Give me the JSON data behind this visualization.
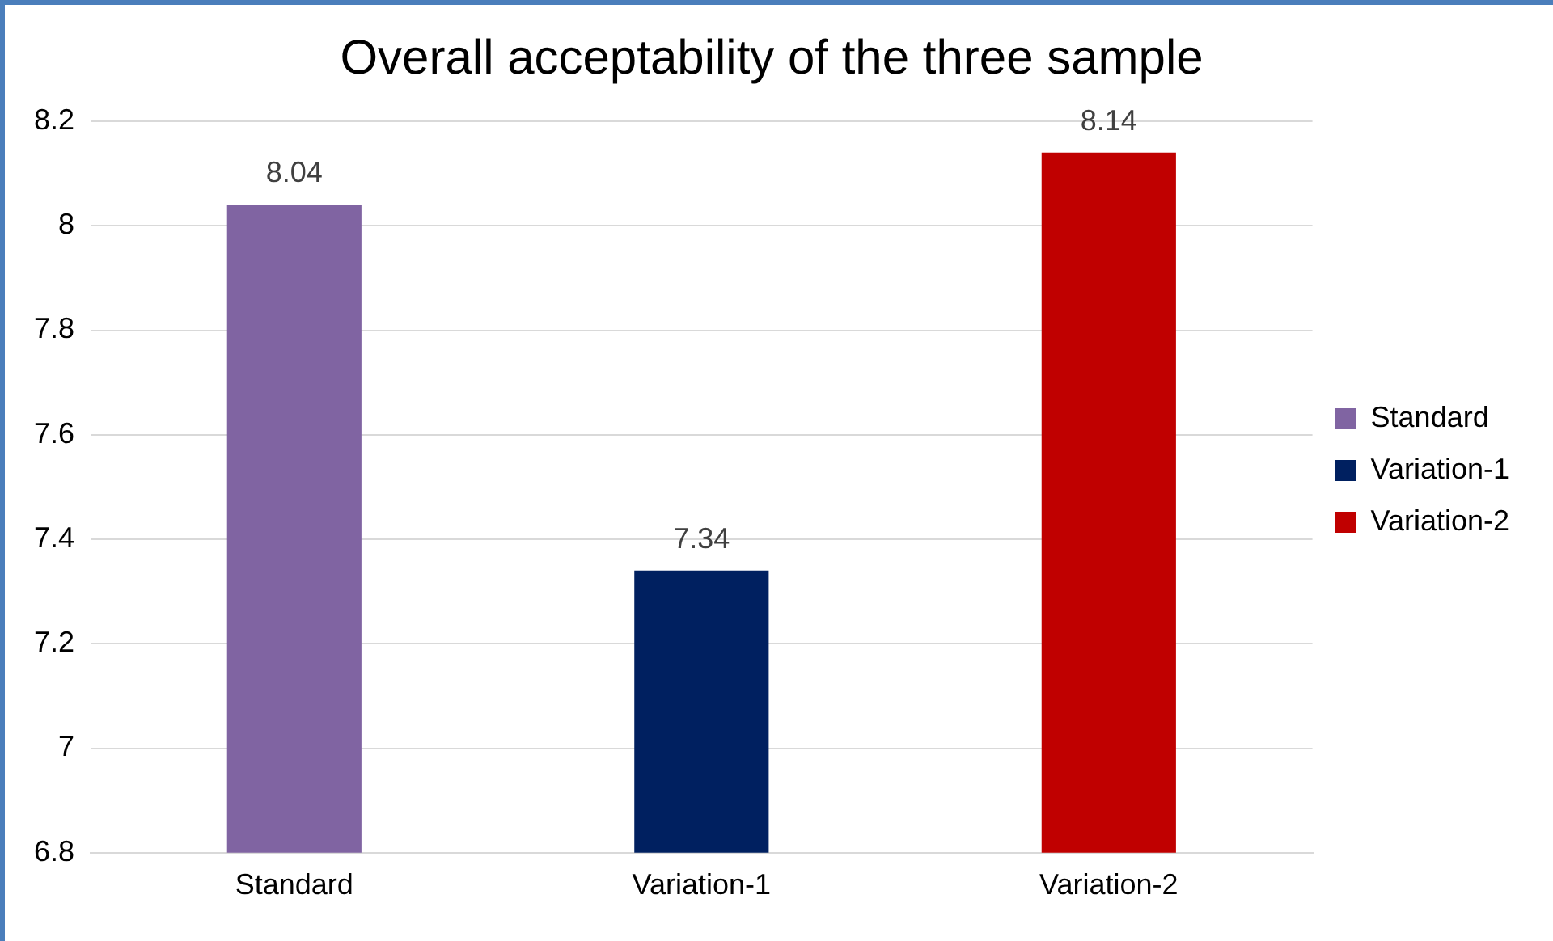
{
  "chart_data": {
    "type": "bar",
    "title": "Overall acceptability of the three sample",
    "categories": [
      "Standard",
      "Variation-1",
      "Variation-2"
    ],
    "series": [
      {
        "name": "Standard",
        "color": "#8064a2",
        "values": [
          8.04,
          null,
          null
        ]
      },
      {
        "name": "Variation-1",
        "color": "#002060",
        "values": [
          null,
          7.34,
          null
        ]
      },
      {
        "name": "Variation-2",
        "color": "#c00000",
        "values": [
          null,
          null,
          8.14
        ]
      }
    ],
    "ylim": [
      6.8,
      8.2
    ],
    "yticks": [
      6.8,
      7,
      7.2,
      7.4,
      7.6,
      7.8,
      8,
      8.2
    ],
    "grid": "y",
    "legend": "right",
    "data_labels": true
  }
}
